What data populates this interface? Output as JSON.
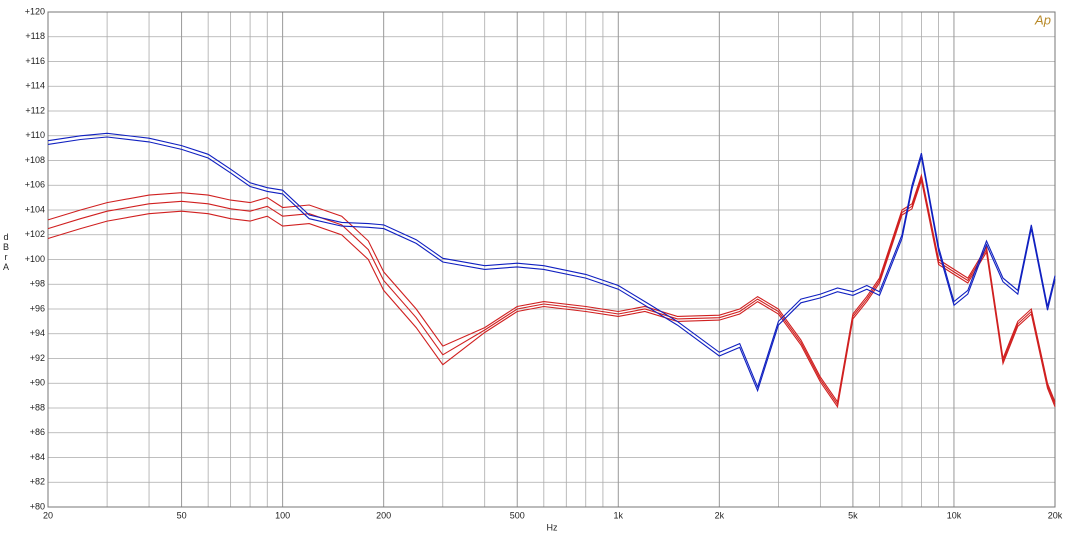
{
  "chart_data": {
    "type": "line",
    "y_label": "dBrA",
    "x_label": "Hz",
    "logo": "Ap",
    "log_x": true,
    "grid": true,
    "xlim": [
      20,
      20000
    ],
    "xticks": [
      20,
      50,
      100,
      200,
      500,
      {
        "value": 1000,
        "label": "1k"
      },
      {
        "value": 2000,
        "label": "2k"
      },
      {
        "value": 5000,
        "label": "5k"
      },
      {
        "value": 10000,
        "label": "10k"
      },
      {
        "value": 20000,
        "label": "20k"
      }
    ],
    "xminor": [
      30,
      40,
      60,
      70,
      80,
      90,
      300,
      400,
      600,
      700,
      800,
      900,
      3000,
      4000,
      6000,
      7000,
      8000,
      9000
    ],
    "ylim": [
      80,
      120
    ],
    "yticks": [
      {
        "value": 80,
        "label": "+80"
      },
      {
        "value": 82,
        "label": "+82"
      },
      {
        "value": 84,
        "label": "+84"
      },
      {
        "value": 86,
        "label": "+86"
      },
      {
        "value": 88,
        "label": "+88"
      },
      {
        "value": 90,
        "label": "+90"
      },
      {
        "value": 92,
        "label": "+92"
      },
      {
        "value": 94,
        "label": "+94"
      },
      {
        "value": 96,
        "label": "+96"
      },
      {
        "value": 98,
        "label": "+98"
      },
      {
        "value": 100,
        "label": "+100"
      },
      {
        "value": 102,
        "label": "+102"
      },
      {
        "value": 104,
        "label": "+104"
      },
      {
        "value": 106,
        "label": "+106"
      },
      {
        "value": 108,
        "label": "+108"
      },
      {
        "value": 110,
        "label": "+110"
      },
      {
        "value": 112,
        "label": "+112"
      },
      {
        "value": 114,
        "label": "+114"
      },
      {
        "value": 116,
        "label": "+116"
      },
      {
        "value": 118,
        "label": "+118"
      },
      {
        "value": 120,
        "label": "+120"
      }
    ],
    "x": [
      20,
      25,
      30,
      40,
      50,
      60,
      70,
      80,
      90,
      100,
      120,
      150,
      180,
      200,
      250,
      300,
      400,
      500,
      600,
      800,
      1000,
      1200,
      1500,
      2000,
      2300,
      2600,
      3000,
      3500,
      4000,
      4500,
      5000,
      5500,
      6000,
      7000,
      7500,
      8000,
      9000,
      10000,
      11000,
      12500,
      14000,
      15500,
      17000,
      19000,
      20000
    ],
    "series": [
      {
        "color": "#d02020",
        "values": [
          103.2,
          104,
          104.6,
          105.2,
          105.4,
          105.2,
          104.8,
          104.6,
          105,
          104.2,
          104.4,
          103.5,
          101.5,
          99,
          96,
          93,
          94.5,
          96.2,
          96.6,
          96.2,
          95.8,
          96.2,
          95.4,
          95.5,
          96,
          97,
          96,
          93.5,
          90.5,
          88.5,
          95.6,
          97,
          98.5,
          104,
          104.5,
          106.8,
          100,
          99.2,
          98.5,
          101,
          92,
          95,
          96,
          90,
          88.5
        ]
      },
      {
        "color": "#d02020",
        "values": [
          102.5,
          103.3,
          103.9,
          104.5,
          104.7,
          104.5,
          104.1,
          103.9,
          104.3,
          103.5,
          103.7,
          102.8,
          100.8,
          98.3,
          95.3,
          92.3,
          94.3,
          96,
          96.4,
          96,
          95.6,
          96,
          95.2,
          95.3,
          95.8,
          96.8,
          95.8,
          93.3,
          90.3,
          88.3,
          95.4,
          96.8,
          98.3,
          103.8,
          104.3,
          106.6,
          99.8,
          99,
          98.3,
          100.8,
          91.8,
          94.8,
          95.8,
          89.8,
          88.3
        ]
      },
      {
        "color": "#d02020",
        "values": [
          101.7,
          102.5,
          103.1,
          103.7,
          103.9,
          103.7,
          103.3,
          103.1,
          103.5,
          102.7,
          102.9,
          102,
          100,
          97.5,
          94.5,
          91.5,
          94.1,
          95.8,
          96.2,
          95.8,
          95.4,
          95.8,
          95,
          95.1,
          95.6,
          96.6,
          95.6,
          93.1,
          90.1,
          88.1,
          95.2,
          96.6,
          98.1,
          103.6,
          104.1,
          106.4,
          99.6,
          98.8,
          98.1,
          100.6,
          91.6,
          94.6,
          95.6,
          89.6,
          88.1
        ]
      },
      {
        "color": "#1020c0",
        "values": [
          109.6,
          110.0,
          110.2,
          109.8,
          109.2,
          108.5,
          107.3,
          106.2,
          105.8,
          105.6,
          103.6,
          103.0,
          102.9,
          102.8,
          101.6,
          100.1,
          99.5,
          99.7,
          99.5,
          98.8,
          97.9,
          96.6,
          95.0,
          92.5,
          93.2,
          89.7,
          95,
          96.8,
          97.2,
          97.7,
          97.4,
          97.9,
          97.4,
          102,
          106,
          108.6,
          101,
          96.6,
          97.5,
          101.5,
          98.5,
          97.5,
          102.8,
          96.2,
          98.7
        ]
      },
      {
        "color": "#1020c0",
        "values": [
          109.3,
          109.7,
          109.9,
          109.5,
          108.9,
          108.2,
          107,
          105.9,
          105.5,
          105.3,
          103.3,
          102.7,
          102.6,
          102.5,
          101.3,
          99.8,
          99.2,
          99.4,
          99.2,
          98.5,
          97.6,
          96.3,
          94.7,
          92.2,
          92.9,
          89.4,
          94.7,
          96.5,
          96.9,
          97.4,
          97.1,
          97.6,
          97.1,
          101.7,
          105.7,
          108.3,
          100.7,
          96.3,
          97.2,
          101.2,
          98.2,
          97.2,
          102.5,
          95.9,
          98.4
        ]
      }
    ]
  }
}
